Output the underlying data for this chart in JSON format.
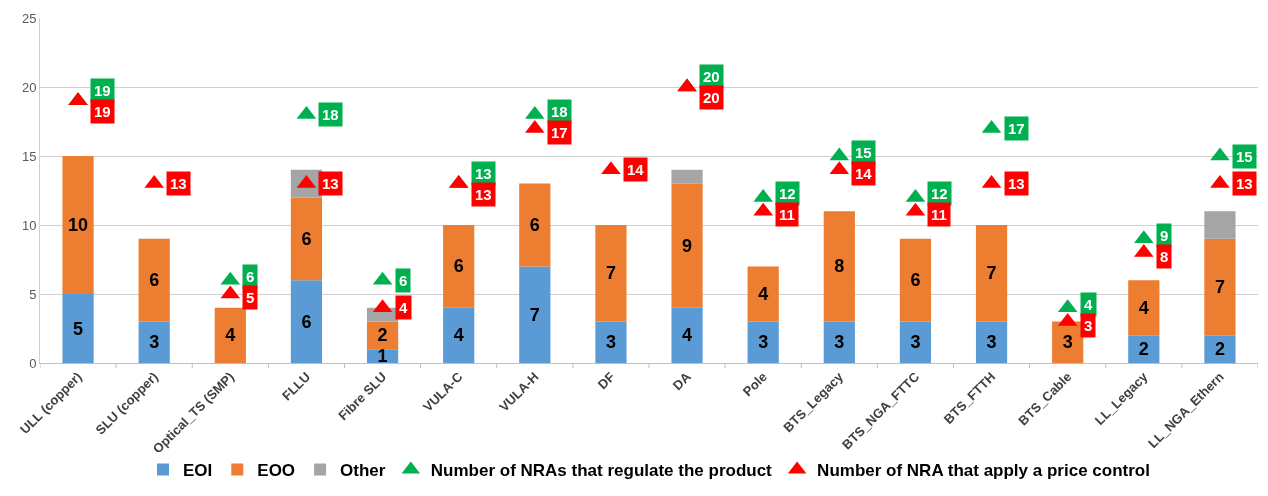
{
  "chart_data": {
    "type": "bar",
    "stacked": true,
    "categories": [
      "ULL (copper)",
      "SLU (copper)",
      "Optical_TS (SMP)",
      "FLLU",
      "Fibre SLU",
      "VULA-C",
      "VULA-H",
      "DF",
      "DA",
      "Pole",
      "BTS_Legacy",
      "BTS_NGA_FTTC",
      "BTS_FTTH",
      "BTS_Cable",
      "LL_Legacy",
      "LL_NGA_Ethern"
    ],
    "series": [
      {
        "name": "EOI",
        "color": "#5b9bd5",
        "values": [
          5,
          3,
          0,
          6,
          1,
          4,
          7,
          3,
          4,
          3,
          3,
          3,
          3,
          0,
          2,
          2
        ],
        "value_labels": [
          "5",
          "3",
          null,
          "6",
          "1",
          "4",
          "7",
          "3",
          "4",
          "3",
          "3",
          "3",
          "3",
          null,
          "2",
          "2"
        ]
      },
      {
        "name": "EOO",
        "color": "#ed7d31",
        "values": [
          10,
          6,
          4,
          6,
          2,
          6,
          6,
          7,
          9,
          4,
          8,
          6,
          7,
          3,
          4,
          7
        ],
        "value_labels": [
          "10",
          "6",
          "4",
          "6",
          "2",
          "6",
          "6",
          "7",
          "9",
          "4",
          "8",
          "6",
          "7",
          "3",
          "4",
          "7"
        ]
      },
      {
        "name": "Other",
        "color": "#a5a5a5",
        "values": [
          0,
          0,
          0,
          2,
          1,
          0,
          0,
          0,
          1,
          0,
          0,
          0,
          0,
          0,
          0,
          2
        ]
      },
      {
        "name": "Number of NRAs that regulate the product",
        "type": "scatter",
        "marker": "triangle",
        "color": "#00b050",
        "values": [
          19,
          null,
          6,
          18,
          6,
          13,
          18,
          null,
          20,
          12,
          15,
          12,
          17,
          4,
          9,
          15
        ],
        "value_labels": [
          "19",
          null,
          "6",
          "18",
          "6",
          "13",
          "18",
          null,
          "20",
          "12",
          "15",
          "12",
          "17",
          "4",
          "9",
          "15"
        ]
      },
      {
        "name": "Number of NRA that apply a price control",
        "type": "scatter",
        "marker": "triangle",
        "color": "#ff0000",
        "values": [
          19,
          13,
          5,
          13,
          4,
          13,
          17,
          14,
          20,
          11,
          14,
          11,
          13,
          3,
          8,
          13
        ],
        "value_labels": [
          "19",
          "13",
          "5",
          "13",
          "4",
          "13",
          "17",
          "14",
          "20",
          "11",
          "14",
          "11",
          "13",
          "3",
          "8",
          "13"
        ]
      }
    ],
    "ylim": [
      0,
      25
    ],
    "yticks": [
      0,
      5,
      10,
      15,
      20,
      25
    ],
    "grid": "y",
    "legend": "bottom"
  }
}
